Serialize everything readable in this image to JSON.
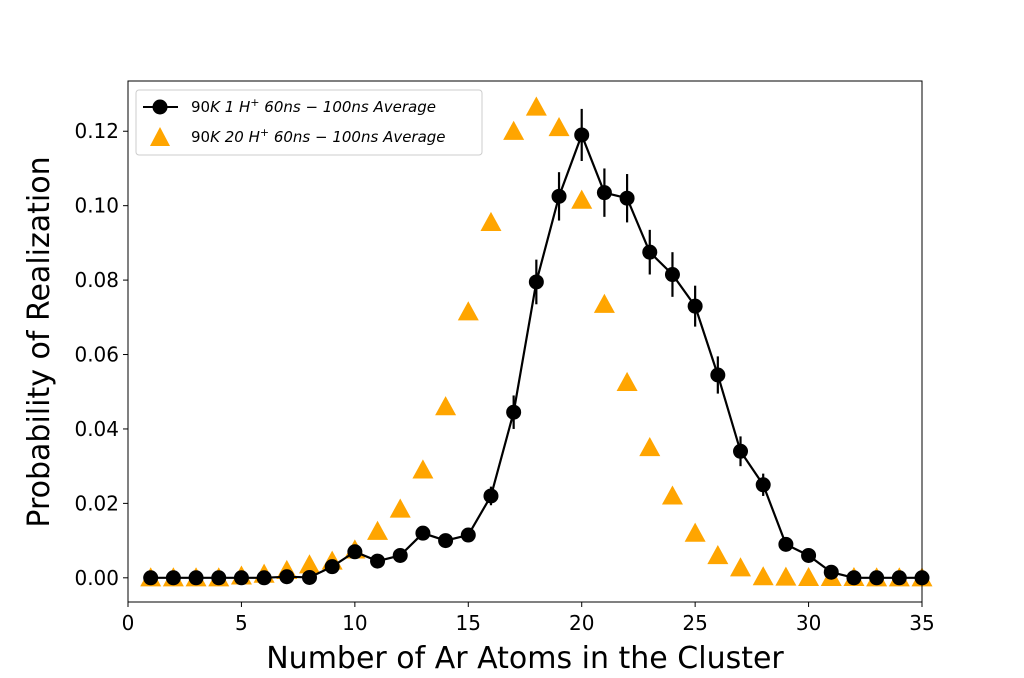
{
  "chart_data": {
    "type": "scatter",
    "xlabel": "Number of Ar Atoms in the Cluster",
    "ylabel": "Probability of Realization",
    "xlim": [
      0,
      35
    ],
    "ylim": [
      -0.0065,
      0.1335
    ],
    "xticks": [
      0,
      5,
      10,
      15,
      20,
      25,
      30,
      35
    ],
    "xtick_labels": [
      "0",
      "5",
      "10",
      "15",
      "20",
      "25",
      "30",
      "35"
    ],
    "yticks": [
      0.0,
      0.02,
      0.04,
      0.06,
      0.08,
      0.1,
      0.12
    ],
    "ytick_labels": [
      "0.00",
      "0.02",
      "0.04",
      "0.06",
      "0.08",
      "0.10",
      "0.12"
    ],
    "grid": false,
    "legend_position": "top-left",
    "series": [
      {
        "name": "90K 1 H⁺ 60ns−100ns Average",
        "marker": "circle",
        "line": true,
        "color": "#000000",
        "x": [
          1,
          2,
          3,
          4,
          5,
          6,
          7,
          8,
          9,
          10,
          11,
          12,
          13,
          14,
          15,
          16,
          17,
          18,
          19,
          20,
          21,
          22,
          23,
          24,
          25,
          26,
          27,
          28,
          29,
          30,
          31,
          32,
          33,
          34,
          35
        ],
        "y": [
          0.0,
          0.0,
          0.0,
          0.0,
          0.0,
          0.0,
          0.0003,
          0.0001,
          0.003,
          0.007,
          0.0045,
          0.006,
          0.012,
          0.01,
          0.0115,
          0.022,
          0.0445,
          0.0795,
          0.1025,
          0.119,
          0.1035,
          0.102,
          0.0875,
          0.0815,
          0.073,
          0.0545,
          0.034,
          0.025,
          0.009,
          0.006,
          0.0015,
          0.0,
          0.0,
          0.0,
          0.0
        ],
        "yerr": [
          0,
          0,
          0,
          0,
          0,
          0,
          0,
          0,
          0,
          0,
          0,
          0,
          0.001,
          0,
          0.0012,
          0.0025,
          0.0045,
          0.006,
          0.0065,
          0.007,
          0.0065,
          0.0065,
          0.006,
          0.006,
          0.0055,
          0.005,
          0.004,
          0.003,
          0.0015,
          0.001,
          0.0005,
          0,
          0,
          0,
          0
        ]
      },
      {
        "name": "90K 20 H⁺ 60ns−100ns Average",
        "marker": "triangle",
        "line": false,
        "color": "#FFA500",
        "x": [
          1,
          2,
          3,
          4,
          5,
          6,
          7,
          8,
          9,
          10,
          11,
          12,
          13,
          14,
          15,
          16,
          17,
          18,
          19,
          20,
          21,
          22,
          23,
          24,
          25,
          26,
          27,
          28,
          29,
          30,
          31,
          32,
          33,
          34,
          35
        ],
        "y": [
          0.0,
          0.0,
          0.0,
          0.0,
          0.0005,
          0.001,
          0.002,
          0.0035,
          0.0045,
          0.0075,
          0.0125,
          0.0185,
          0.029,
          0.046,
          0.0715,
          0.0955,
          0.12,
          0.1265,
          0.121,
          0.1015,
          0.0735,
          0.0525,
          0.035,
          0.022,
          0.012,
          0.006,
          0.0027,
          0.0003,
          0.0002,
          0.0001,
          0.0001,
          0.0001,
          0.0,
          0.0,
          0.0
        ]
      }
    ]
  },
  "legend": {
    "items": [
      {
        "prefix": "90",
        "mid1": "K 1 ",
        "h": "H",
        "sup": "+",
        "rest": " 60ns − 100ns Average"
      },
      {
        "prefix": "90",
        "mid1": "K 20 ",
        "h": "H",
        "sup": "+",
        "rest": " 60ns − 100ns Average"
      }
    ]
  }
}
